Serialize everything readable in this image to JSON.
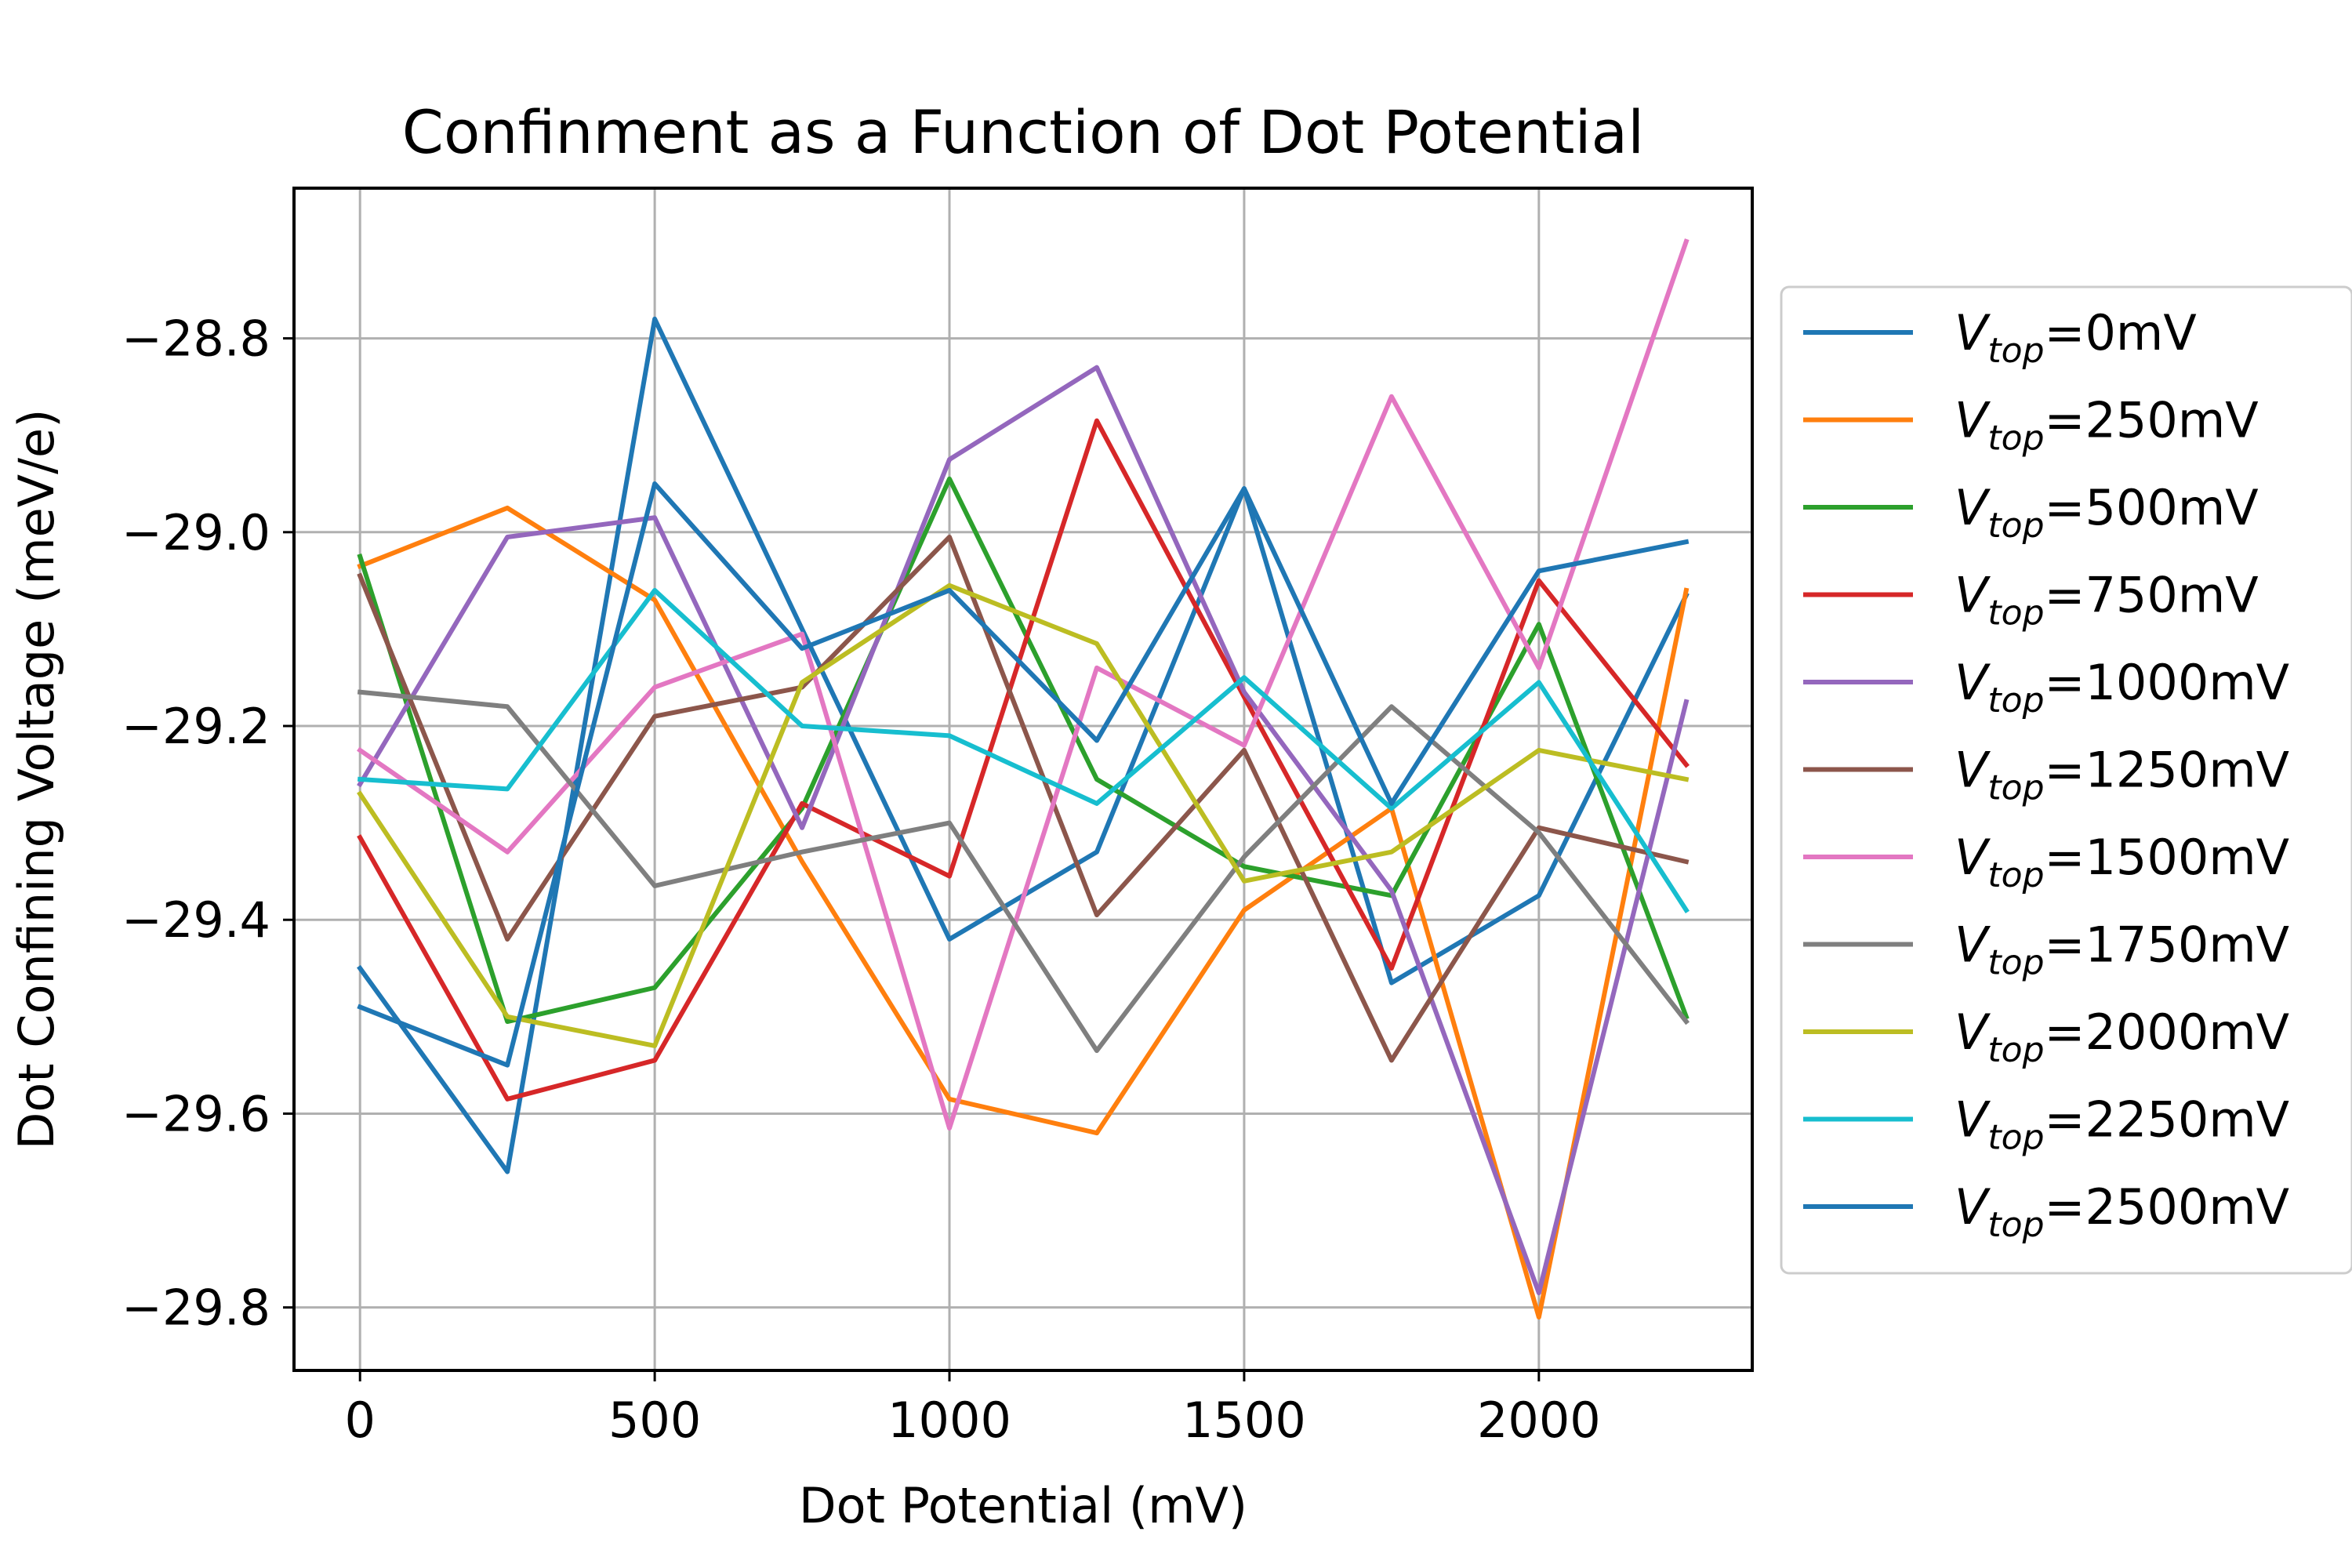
{
  "chart_data": {
    "type": "line",
    "title": "Confinment as a Function of Dot Potential",
    "xlabel": "Dot Potential (mV)",
    "ylabel": "Dot Confining Voltage (meV/e)",
    "xlim": [
      -112,
      2362
    ],
    "ylim": [
      -29.865,
      -28.645
    ],
    "xticks": [
      0,
      500,
      1000,
      1500,
      2000
    ],
    "xtick_labels": [
      "0",
      "500",
      "1000",
      "1500",
      "2000"
    ],
    "yticks": [
      -28.8,
      -29.0,
      -29.2,
      -29.4,
      -29.6,
      -29.8
    ],
    "ytick_labels": [
      "−28.8",
      "−29.0",
      "−29.2",
      "−29.4",
      "−29.6",
      "−29.8"
    ],
    "grid": true,
    "legend_position": "outside-right",
    "x": [
      0,
      250,
      500,
      750,
      1000,
      1250,
      1500,
      1750,
      2000,
      2250
    ],
    "series": [
      {
        "name_main": "V",
        "name_sub": "top",
        "name_rest": "=0mV",
        "color": "#1f77b4",
        "values": [
          -29.45,
          -29.66,
          -28.78,
          -29.1,
          -29.42,
          -29.33,
          -28.955,
          -29.465,
          -29.375,
          -29.065
        ]
      },
      {
        "name_main": "V",
        "name_sub": "top",
        "name_rest": "=250mV",
        "color": "#ff7f0e",
        "values": [
          -29.035,
          -28.975,
          -29.07,
          -29.34,
          -29.585,
          -29.62,
          -29.39,
          -29.285,
          -29.81,
          -29.06
        ]
      },
      {
        "name_main": "V",
        "name_sub": "top",
        "name_rest": "=500mV",
        "color": "#2ca02c",
        "values": [
          -29.025,
          -29.505,
          -29.47,
          -29.285,
          -28.945,
          -29.255,
          -29.345,
          -29.375,
          -29.095,
          -29.5
        ]
      },
      {
        "name_main": "V",
        "name_sub": "top",
        "name_rest": "=750mV",
        "color": "#d62728",
        "values": [
          -29.315,
          -29.585,
          -29.545,
          -29.28,
          -29.355,
          -28.885,
          -29.17,
          -29.45,
          -29.05,
          -29.24
        ]
      },
      {
        "name_main": "V",
        "name_sub": "top",
        "name_rest": "=1000mV",
        "color": "#9467bd",
        "values": [
          -29.26,
          -29.005,
          -28.985,
          -29.305,
          -28.925,
          -28.83,
          -29.165,
          -29.37,
          -29.785,
          -29.175
        ]
      },
      {
        "name_main": "V",
        "name_sub": "top",
        "name_rest": "=1250mV",
        "color": "#8c564b",
        "values": [
          -29.045,
          -29.42,
          -29.19,
          -29.16,
          -29.005,
          -29.395,
          -29.225,
          -29.545,
          -29.305,
          -29.34
        ]
      },
      {
        "name_main": "V",
        "name_sub": "top",
        "name_rest": "=1500mV",
        "color": "#e377c2",
        "values": [
          -29.225,
          -29.33,
          -29.16,
          -29.105,
          -29.615,
          -29.14,
          -29.22,
          -28.86,
          -29.14,
          -28.7
        ]
      },
      {
        "name_main": "V",
        "name_sub": "top",
        "name_rest": "=1750mV",
        "color": "#7f7f7f",
        "values": [
          -29.165,
          -29.18,
          -29.365,
          -29.33,
          -29.3,
          -29.535,
          -29.335,
          -29.18,
          -29.31,
          -29.505
        ]
      },
      {
        "name_main": "V",
        "name_sub": "top",
        "name_rest": "=2000mV",
        "color": "#bcbd22",
        "values": [
          -29.27,
          -29.5,
          -29.53,
          -29.155,
          -29.055,
          -29.115,
          -29.36,
          -29.33,
          -29.225,
          -29.255
        ]
      },
      {
        "name_main": "V",
        "name_sub": "top",
        "name_rest": "=2250mV",
        "color": "#17becf",
        "values": [
          -29.255,
          -29.265,
          -29.06,
          -29.2,
          -29.21,
          -29.28,
          -29.15,
          -29.285,
          -29.155,
          -29.39
        ]
      },
      {
        "name_main": "V",
        "name_sub": "top",
        "name_rest": "=2500mV",
        "color": "#1f77b4",
        "values": [
          -29.49,
          -29.55,
          -28.95,
          -29.12,
          -29.06,
          -29.215,
          -28.955,
          -29.28,
          -29.04,
          -29.01
        ]
      }
    ]
  }
}
